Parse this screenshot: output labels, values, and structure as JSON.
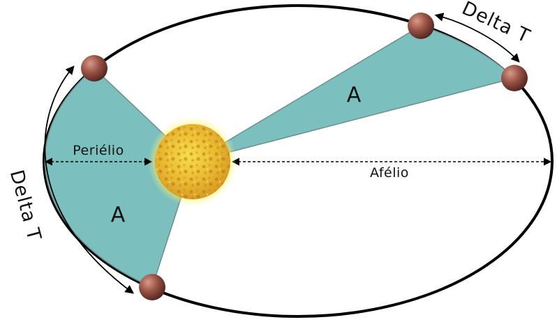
{
  "colors": {
    "background": "#ffffff",
    "orbit": "#000000",
    "swept_area": "#7cbfbf",
    "swept_edge": "#6b8e8e",
    "sun_core": "#f2c62a",
    "sun_glow": "#fff36b",
    "planet": "#8c4a3e"
  },
  "labels": {
    "area_left": "A",
    "area_right": "A",
    "perihelion": "Periélio",
    "aphelion": "Afélio",
    "delta_t_left": "Delta T",
    "delta_t_right": "Delta T"
  },
  "icons": {
    "sun": "sun-icon",
    "planet": "planet-icon"
  }
}
